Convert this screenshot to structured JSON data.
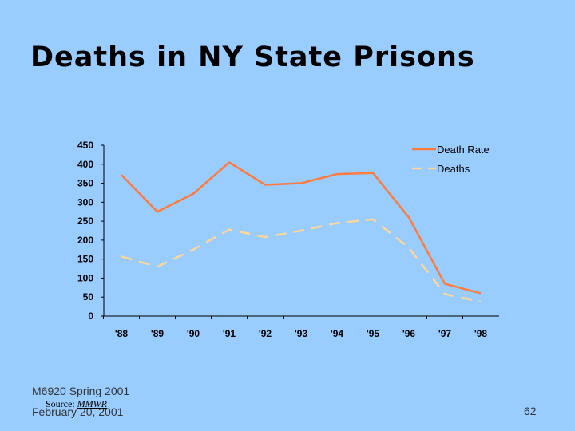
{
  "slide": {
    "title": "Deaths in NY State Prisons",
    "course": "M6920 Spring 2001",
    "date": "February 20, 2001",
    "source_label": "Source:",
    "source_name": "MMWR",
    "page_number": "62"
  },
  "colors": {
    "background": "#99ccff",
    "death_rate": "#ff7a3d",
    "deaths": "#ffd699"
  },
  "chart_data": {
    "type": "line",
    "categories": [
      "'88",
      "'89",
      "'90",
      "'91",
      "'92",
      "'93",
      "'94",
      "'95",
      "'96",
      "'97",
      "'98"
    ],
    "series": [
      {
        "name": "Death Rate",
        "values": [
          372,
          275,
          322,
          405,
          346,
          350,
          374,
          377,
          260,
          85,
          60
        ],
        "line_style": "solid",
        "color": "#ff7a3d"
      },
      {
        "name": "Deaths",
        "values": [
          157,
          130,
          175,
          228,
          208,
          225,
          245,
          255,
          180,
          58,
          38
        ],
        "line_style": "dashed",
        "color": "#ffd699"
      }
    ],
    "y_ticks": [
      "450",
      "400",
      "350",
      "300",
      "250",
      "200",
      "150",
      "100",
      "50",
      "0"
    ],
    "ylim": [
      0,
      450
    ],
    "grid": false,
    "legend_position": "top-right"
  }
}
